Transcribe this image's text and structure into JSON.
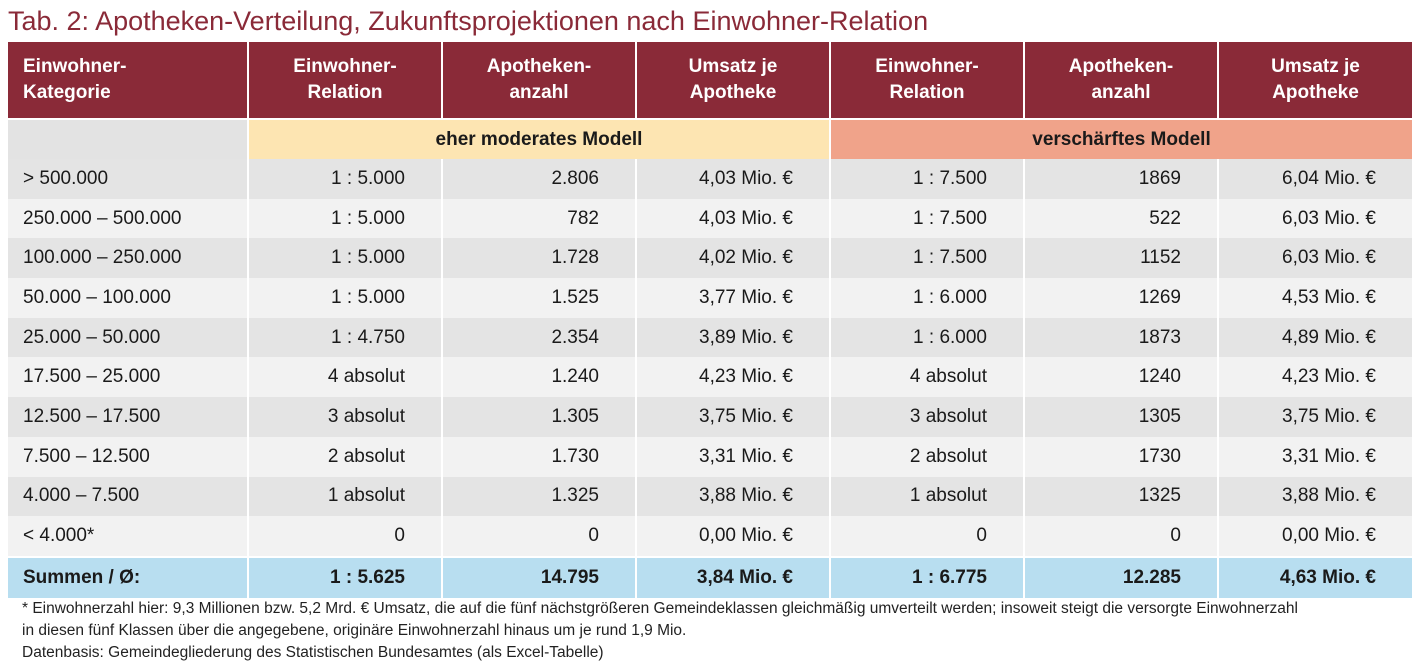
{
  "title": "Tab. 2: Apotheken-Verteilung, Zukunftsprojektionen nach Einwohner-Relation",
  "header": {
    "category": [
      "Einwohner-",
      "Kategorie"
    ],
    "relation": [
      "Einwohner-",
      "Relation"
    ],
    "count": [
      "Apotheken-",
      "anzahl"
    ],
    "revenue": [
      "Umsatz je",
      "Apotheke"
    ]
  },
  "models": {
    "blank": "",
    "moderate": "eher moderates Modell",
    "strict": "verschärftes Modell"
  },
  "rows": [
    {
      "category": "> 500.000",
      "mod_relation": "1 : 5.000",
      "mod_count": "2.806",
      "mod_revenue": "4,03 Mio. €",
      "str_relation": "1 : 7.500",
      "str_count": "1869",
      "str_revenue": "6,04 Mio. €"
    },
    {
      "category": "250.000 – 500.000",
      "mod_relation": "1 : 5.000",
      "mod_count": "782",
      "mod_revenue": "4,03 Mio. €",
      "str_relation": "1 : 7.500",
      "str_count": "522",
      "str_revenue": "6,03 Mio. €"
    },
    {
      "category": "100.000 – 250.000",
      "mod_relation": "1 : 5.000",
      "mod_count": "1.728",
      "mod_revenue": "4,02 Mio. €",
      "str_relation": "1 : 7.500",
      "str_count": "1152",
      "str_revenue": "6,03 Mio. €"
    },
    {
      "category": "50.000 – 100.000",
      "mod_relation": "1 : 5.000",
      "mod_count": "1.525",
      "mod_revenue": "3,77 Mio. €",
      "str_relation": "1 : 6.000",
      "str_count": "1269",
      "str_revenue": "4,53 Mio. €"
    },
    {
      "category": "25.000 – 50.000",
      "mod_relation": "1 : 4.750",
      "mod_count": "2.354",
      "mod_revenue": "3,89 Mio. €",
      "str_relation": "1 : 6.000",
      "str_count": "1873",
      "str_revenue": "4,89 Mio. €"
    },
    {
      "category": "17.500 – 25.000",
      "mod_relation": "4 absolut",
      "mod_count": "1.240",
      "mod_revenue": "4,23 Mio. €",
      "str_relation": "4 absolut",
      "str_count": "1240",
      "str_revenue": "4,23 Mio. €"
    },
    {
      "category": "12.500 – 17.500",
      "mod_relation": "3 absolut",
      "mod_count": "1.305",
      "mod_revenue": "3,75 Mio. €",
      "str_relation": "3 absolut",
      "str_count": "1305",
      "str_revenue": "3,75 Mio. €"
    },
    {
      "category": "7.500 – 12.500",
      "mod_relation": "2 absolut",
      "mod_count": "1.730",
      "mod_revenue": "3,31 Mio. €",
      "str_relation": "2 absolut",
      "str_count": "1730",
      "str_revenue": "3,31 Mio. €"
    },
    {
      "category": "4.000 – 7.500",
      "mod_relation": "1 absolut",
      "mod_count": "1.325",
      "mod_revenue": "3,88 Mio. €",
      "str_relation": "1 absolut",
      "str_count": "1325",
      "str_revenue": "3,88 Mio. €"
    },
    {
      "category": "< 4.000*",
      "mod_relation": "0",
      "mod_count": "0",
      "mod_revenue": "0,00 Mio. €",
      "str_relation": "0",
      "str_count": "0",
      "str_revenue": "0,00 Mio. €"
    }
  ],
  "totals": {
    "category": "Summen / Ø:",
    "mod_relation": "1 : 5.625",
    "mod_count": "14.795",
    "mod_revenue": "3,84 Mio. €",
    "str_relation": "1 : 6.775",
    "str_count": "12.285",
    "str_revenue": "4,63 Mio. €"
  },
  "notes": {
    "footnote_line1": "* Einwohnerzahl hier: 9,3 Millionen bzw. 5,2 Mrd. € Umsatz, die auf die fünf nächstgrößeren Gemeindeklassen gleichmäßig umverteilt werden; insoweit steigt die versorgte Einwohnerzahl",
    "footnote_line2": "in diesen fünf Klassen über die angegebene, originäre Einwohnerzahl hinaus um je rund 1,9 Mio.",
    "source": "Datenbasis: Gemeindegliederung des Statistischen Bundesamtes (als Excel-Tabelle)"
  }
}
